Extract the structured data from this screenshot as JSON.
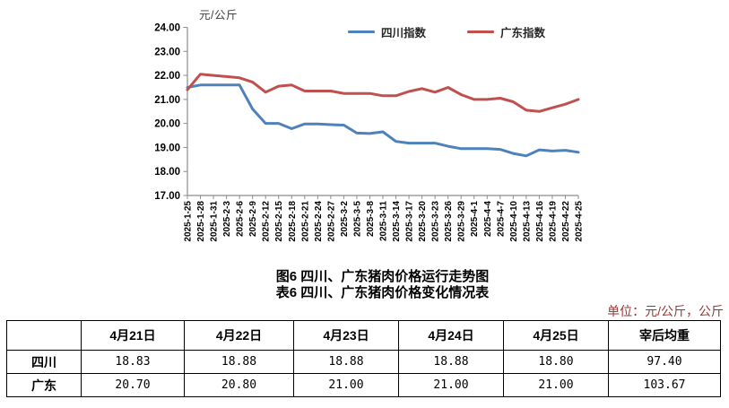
{
  "colors": {
    "sichuan_line": "#4F81BD",
    "guangdong_line": "#C0504D",
    "axis": "#8c8c8c",
    "unit_note_text": "#953735",
    "text": "#000000"
  },
  "chart": {
    "unit_label": "元/公斤"
  },
  "chart_data": {
    "type": "line",
    "title": "",
    "ylabel": "元/公斤",
    "ylim": [
      17,
      24
    ],
    "ytick_step": 1,
    "grid": false,
    "legend_position": "top",
    "categories": [
      "2025-1-25",
      "2025-1-28",
      "2025-1-31",
      "2025-2-3",
      "2025-2-6",
      "2025-2-9",
      "2025-2-12",
      "2025-2-15",
      "2025-2-18",
      "2025-2-21",
      "2025-2-24",
      "2025-2-27",
      "2025-3-2",
      "2025-3-5",
      "2025-3-8",
      "2025-3-11",
      "2025-3-14",
      "2025-3-17",
      "2025-3-20",
      "2025-3-23",
      "2025-3-26",
      "2025-3-29",
      "2025-4-1",
      "2025-4-4",
      "2025-4-7",
      "2025-4-10",
      "2025-4-13",
      "2025-4-16",
      "2025-4-19",
      "2025-4-22",
      "2025-4-25"
    ],
    "series": [
      {
        "name": "四川指数",
        "color": "#4F81BD",
        "values": [
          21.5,
          21.6,
          21.6,
          21.6,
          21.6,
          20.6,
          20.0,
          20.0,
          19.78,
          19.98,
          19.98,
          19.95,
          19.93,
          19.6,
          19.58,
          19.65,
          19.25,
          19.18,
          19.18,
          19.18,
          19.05,
          18.95,
          18.95,
          18.95,
          18.92,
          18.75,
          18.65,
          18.9,
          18.85,
          18.88,
          18.8
        ]
      },
      {
        "name": "广东指数",
        "color": "#C0504D",
        "values": [
          21.4,
          22.05,
          22.0,
          21.95,
          21.9,
          21.72,
          21.3,
          21.55,
          21.6,
          21.35,
          21.35,
          21.35,
          21.25,
          21.25,
          21.25,
          21.15,
          21.15,
          21.33,
          21.45,
          21.3,
          21.5,
          21.2,
          21.0,
          21.0,
          21.05,
          20.9,
          20.55,
          20.5,
          20.65,
          20.8,
          21.0
        ]
      }
    ]
  },
  "captions": {
    "figure": "图6 四川、广东猪肉价格运行走势图",
    "table": "表6 四川、广东猪肉价格变化情况表"
  },
  "unit_note": "单位：元/公斤，公斤",
  "table": {
    "columns": [
      "",
      "4月21日",
      "4月22日",
      "4月23日",
      "4月24日",
      "4月25日",
      "宰后均重"
    ],
    "rows": [
      {
        "label": "四川",
        "values": [
          "18.83",
          "18.88",
          "18.88",
          "18.88",
          "18.80",
          "97.40"
        ]
      },
      {
        "label": "广东",
        "values": [
          "20.70",
          "20.80",
          "21.00",
          "21.00",
          "21.00",
          "103.67"
        ]
      }
    ]
  }
}
